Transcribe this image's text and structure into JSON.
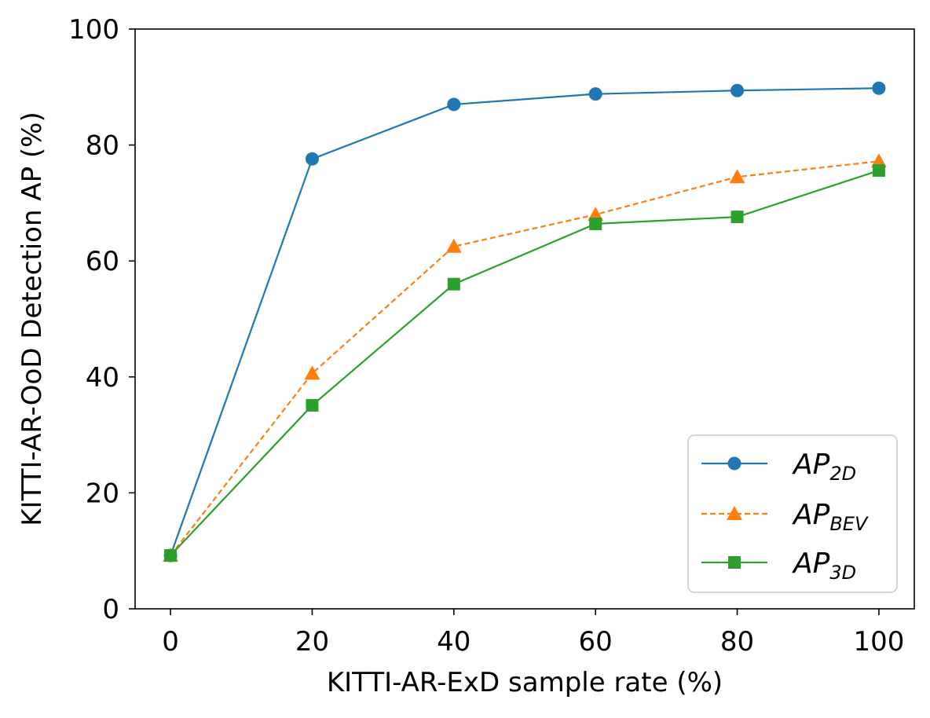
{
  "chart_data": {
    "type": "line",
    "title": "",
    "xlabel": "KITTI-AR-ExD sample rate (%)",
    "ylabel": "KITTI-AR-OoD Detection AP (%)",
    "x": [
      0,
      20,
      40,
      60,
      80,
      100
    ],
    "xlim": [
      -5,
      105
    ],
    "ylim": [
      0,
      100
    ],
    "xticks": [
      0,
      20,
      40,
      60,
      80,
      100
    ],
    "yticks": [
      0,
      20,
      40,
      60,
      80,
      100
    ],
    "grid": false,
    "legend_position": "bottom-right",
    "series": [
      {
        "name": "AP_2D",
        "legend_main": "AP",
        "legend_sub": "2D",
        "color": "#1f77b4",
        "marker": "circle",
        "linestyle": "solid",
        "values": [
          9.2,
          77.6,
          87.0,
          88.8,
          89.4,
          89.8
        ]
      },
      {
        "name": "AP_BEV",
        "legend_main": "AP",
        "legend_sub": "BEV",
        "color": "#ff7f0e",
        "marker": "triangle",
        "linestyle": "dashed",
        "values": [
          9.2,
          40.6,
          62.5,
          68.0,
          74.5,
          77.2
        ]
      },
      {
        "name": "AP_3D",
        "legend_main": "AP",
        "legend_sub": "3D",
        "color": "#2ca02c",
        "marker": "square",
        "linestyle": "solid",
        "values": [
          9.2,
          35.1,
          56.0,
          66.4,
          67.6,
          75.6
        ]
      }
    ]
  }
}
